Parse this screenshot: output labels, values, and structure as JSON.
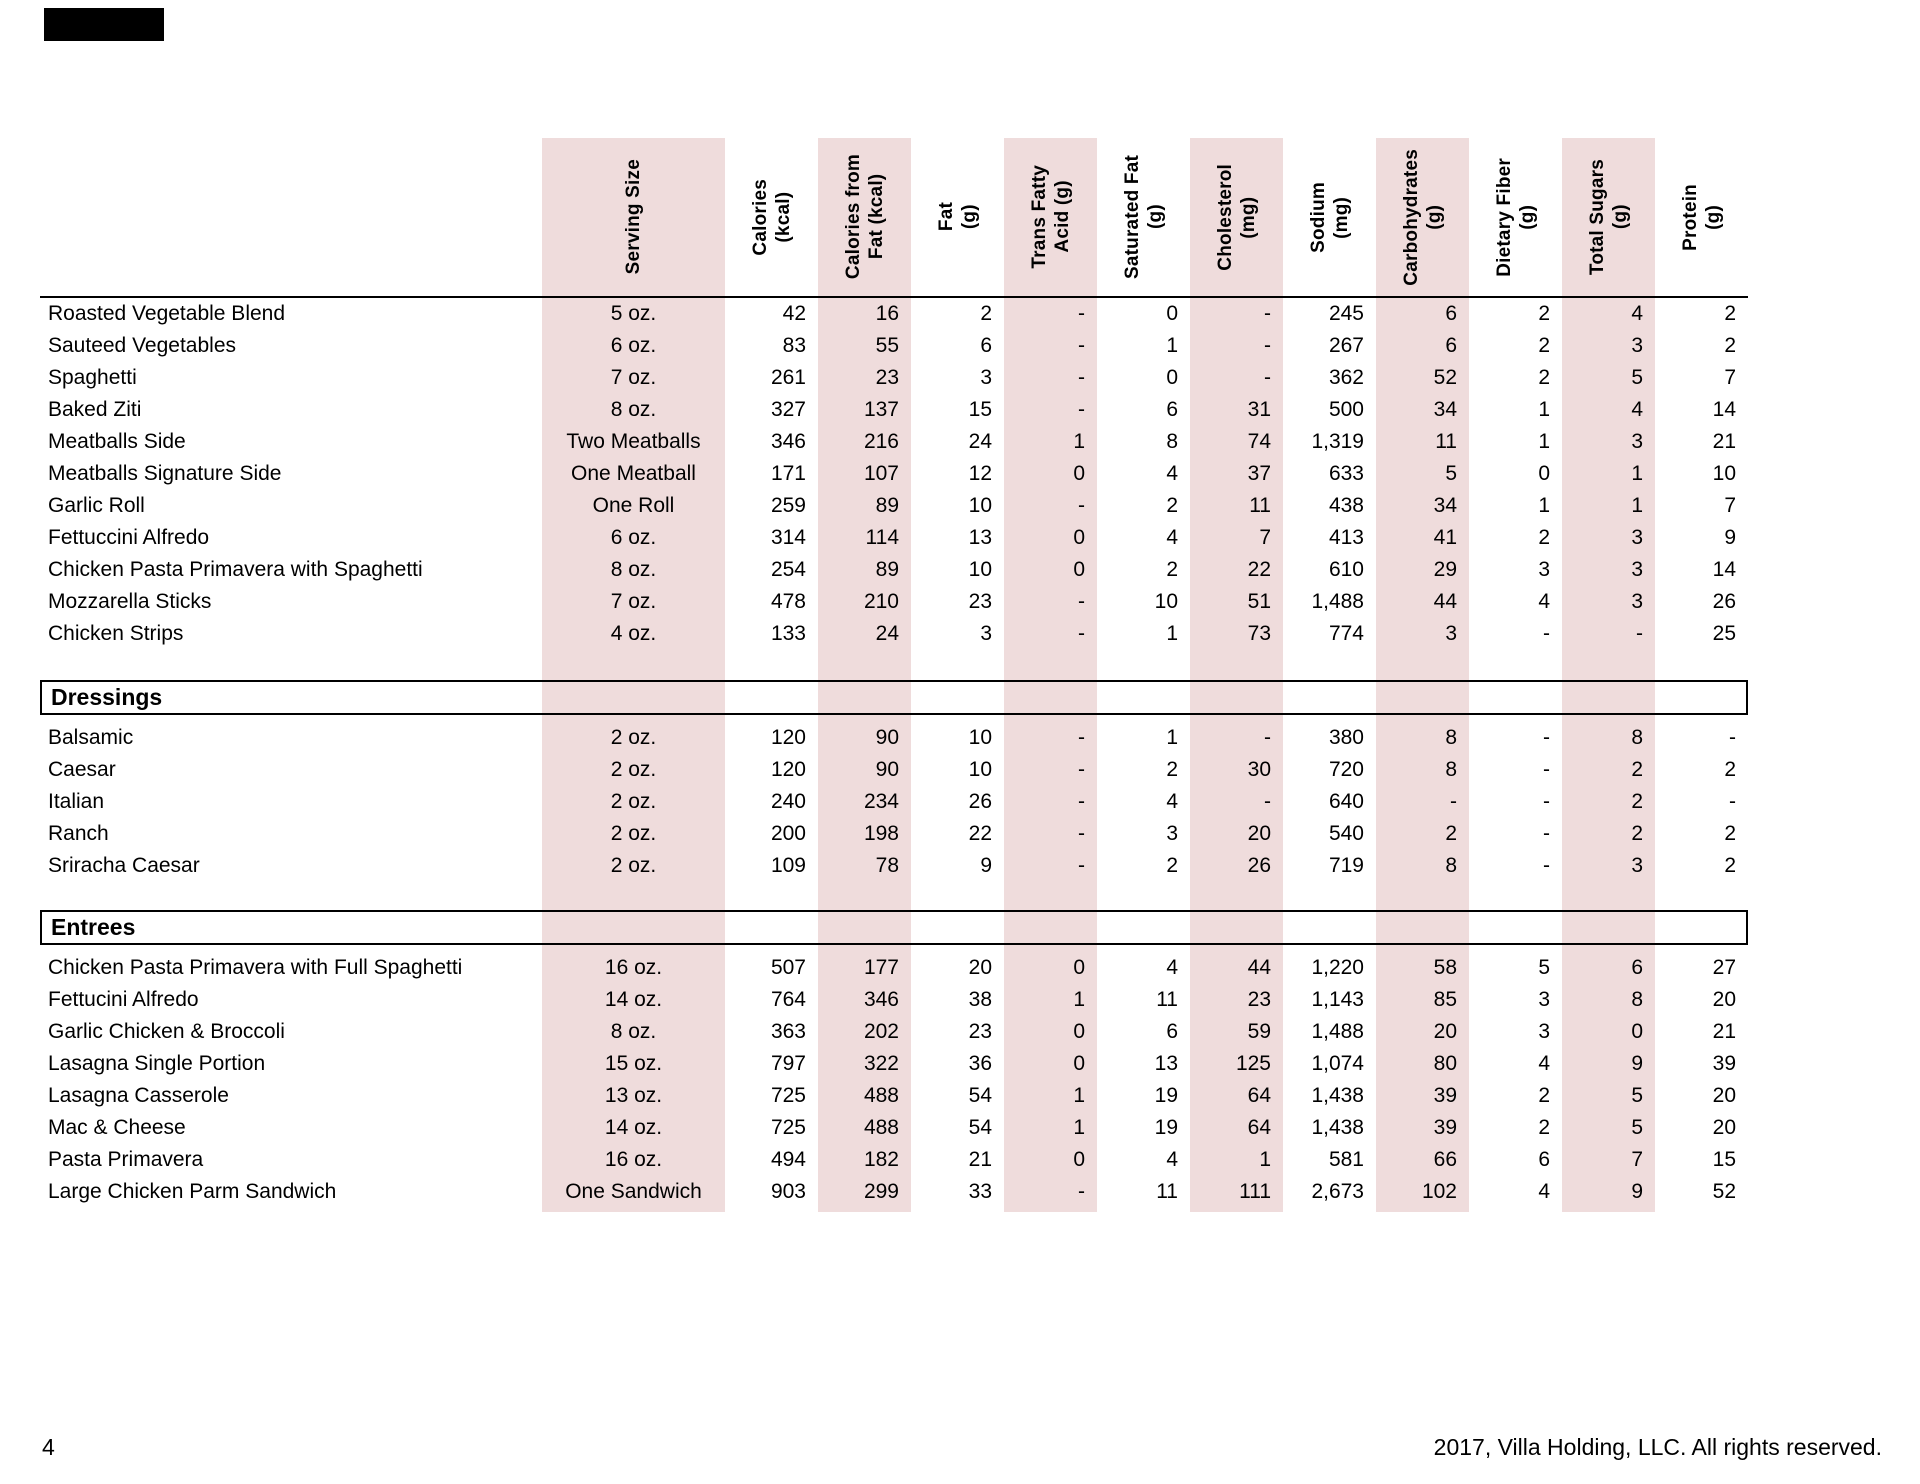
{
  "footer": {
    "page_number": "4",
    "copyright": "2017, Villa Holding, LLC. All rights reserved."
  },
  "table": {
    "column_headers": [
      "Serving Size",
      "Calories\n(kcal)",
      "Calories from\nFat (kcal)",
      "Fat\n(g)",
      "Trans Fatty\nAcid (g)",
      "Saturated Fat\n(g)",
      "Cholesterol\n(mg)",
      "Sodium\n(mg)",
      "Carbohydrates\n(g)",
      "Dietary Fiber\n(g)",
      "Total Sugars\n(g)",
      "Protein\n(g)"
    ],
    "groups": [
      {
        "header": null,
        "rows": [
          {
            "name": "Roasted Vegetable Blend",
            "values": [
              "5 oz.",
              "42",
              "16",
              "2",
              "-",
              "0",
              "-",
              "245",
              "6",
              "2",
              "4",
              "2"
            ]
          },
          {
            "name": "Sauteed Vegetables",
            "values": [
              "6 oz.",
              "83",
              "55",
              "6",
              "-",
              "1",
              "-",
              "267",
              "6",
              "2",
              "3",
              "2"
            ]
          },
          {
            "name": "Spaghetti",
            "values": [
              "7 oz.",
              "261",
              "23",
              "3",
              "-",
              "0",
              "-",
              "362",
              "52",
              "2",
              "5",
              "7"
            ]
          },
          {
            "name": "Baked Ziti",
            "values": [
              "8 oz.",
              "327",
              "137",
              "15",
              "-",
              "6",
              "31",
              "500",
              "34",
              "1",
              "4",
              "14"
            ]
          },
          {
            "name": "Meatballs Side",
            "values": [
              "Two Meatballs",
              "346",
              "216",
              "24",
              "1",
              "8",
              "74",
              "1,319",
              "11",
              "1",
              "3",
              "21"
            ]
          },
          {
            "name": "Meatballs Signature Side",
            "values": [
              "One Meatball",
              "171",
              "107",
              "12",
              "0",
              "4",
              "37",
              "633",
              "5",
              "0",
              "1",
              "10"
            ]
          },
          {
            "name": "Garlic Roll",
            "values": [
              "One Roll",
              "259",
              "89",
              "10",
              "-",
              "2",
              "11",
              "438",
              "34",
              "1",
              "1",
              "7"
            ]
          },
          {
            "name": "Fettuccini Alfredo",
            "values": [
              "6 oz.",
              "314",
              "114",
              "13",
              "0",
              "4",
              "7",
              "413",
              "41",
              "2",
              "3",
              "9"
            ]
          },
          {
            "name": "Chicken Pasta Primavera with Spaghetti",
            "values": [
              "8 oz.",
              "254",
              "89",
              "10",
              "0",
              "2",
              "22",
              "610",
              "29",
              "3",
              "3",
              "14"
            ]
          },
          {
            "name": "Mozzarella Sticks",
            "values": [
              "7 oz.",
              "478",
              "210",
              "23",
              "-",
              "10",
              "51",
              "1,488",
              "44",
              "4",
              "3",
              "26"
            ]
          },
          {
            "name": "Chicken Strips",
            "values": [
              "4 oz.",
              "133",
              "24",
              "3",
              "-",
              "1",
              "73",
              "774",
              "3",
              "-",
              "-",
              "25"
            ]
          }
        ]
      },
      {
        "header": "Dressings",
        "rows": [
          {
            "name": "Balsamic",
            "values": [
              "2 oz.",
              "120",
              "90",
              "10",
              "-",
              "1",
              "-",
              "380",
              "8",
              "-",
              "8",
              "-"
            ]
          },
          {
            "name": "Caesar",
            "values": [
              "2 oz.",
              "120",
              "90",
              "10",
              "-",
              "2",
              "30",
              "720",
              "8",
              "-",
              "2",
              "2"
            ]
          },
          {
            "name": "Italian",
            "values": [
              "2 oz.",
              "240",
              "234",
              "26",
              "-",
              "4",
              "-",
              "640",
              "-",
              "-",
              "2",
              "-"
            ]
          },
          {
            "name": "Ranch",
            "values": [
              "2 oz.",
              "200",
              "198",
              "22",
              "-",
              "3",
              "20",
              "540",
              "2",
              "-",
              "2",
              "2"
            ]
          },
          {
            "name": "Sriracha Caesar",
            "values": [
              "2 oz.",
              "109",
              "78",
              "9",
              "-",
              "2",
              "26",
              "719",
              "8",
              "-",
              "3",
              "2"
            ]
          }
        ]
      },
      {
        "header": "Entrees",
        "rows": [
          {
            "name": "Chicken Pasta Primavera with Full Spaghetti",
            "values": [
              "16 oz.",
              "507",
              "177",
              "20",
              "0",
              "4",
              "44",
              "1,220",
              "58",
              "5",
              "6",
              "27"
            ]
          },
          {
            "name": "Fettucini Alfredo",
            "values": [
              "14 oz.",
              "764",
              "346",
              "38",
              "1",
              "11",
              "23",
              "1,143",
              "85",
              "3",
              "8",
              "20"
            ]
          },
          {
            "name": "Garlic Chicken & Broccoli",
            "values": [
              "8 oz.",
              "363",
              "202",
              "23",
              "0",
              "6",
              "59",
              "1,488",
              "20",
              "3",
              "0",
              "21"
            ]
          },
          {
            "name": "Lasagna Single Portion",
            "values": [
              "15 oz.",
              "797",
              "322",
              "36",
              "0",
              "13",
              "125",
              "1,074",
              "80",
              "4",
              "9",
              "39"
            ]
          },
          {
            "name": "Lasagna Casserole",
            "values": [
              "13 oz.",
              "725",
              "488",
              "54",
              "1",
              "19",
              "64",
              "1,438",
              "39",
              "2",
              "5",
              "20"
            ]
          },
          {
            "name": "Mac & Cheese",
            "values": [
              "14 oz.",
              "725",
              "488",
              "54",
              "1",
              "19",
              "64",
              "1,438",
              "39",
              "2",
              "5",
              "20"
            ]
          },
          {
            "name": "Pasta Primavera",
            "values": [
              "16 oz.",
              "494",
              "182",
              "21",
              "0",
              "4",
              "1",
              "581",
              "66",
              "6",
              "7",
              "15"
            ]
          },
          {
            "name": "Large Chicken Parm Sandwich",
            "values": [
              "One Sandwich",
              "903",
              "299",
              "33",
              "-",
              "11",
              "111",
              "2,673",
              "102",
              "4",
              "9",
              "52"
            ]
          }
        ]
      }
    ]
  }
}
